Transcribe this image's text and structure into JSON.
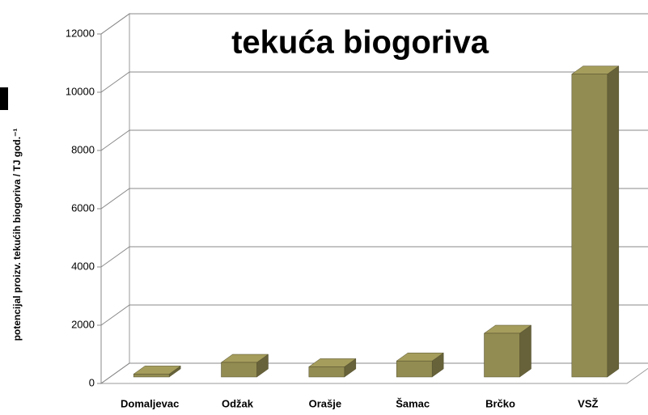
{
  "chart_data": {
    "type": "bar3d",
    "title": "tekuća biogoriva",
    "y_label": "potencijal proizv. tekućih biogoriva  /  TJ god.⁻¹",
    "categories": [
      "Domaljevac",
      "Odžak",
      "Orašje",
      "Šamac",
      "Brčko",
      "VSŽ"
    ],
    "values": [
      100,
      500,
      350,
      550,
      1500,
      10400
    ],
    "color": "#938c52",
    "ylim": [
      0,
      12000
    ],
    "yticks": [
      0,
      2000,
      4000,
      6000,
      8000,
      10000,
      12000
    ],
    "grid": true
  }
}
